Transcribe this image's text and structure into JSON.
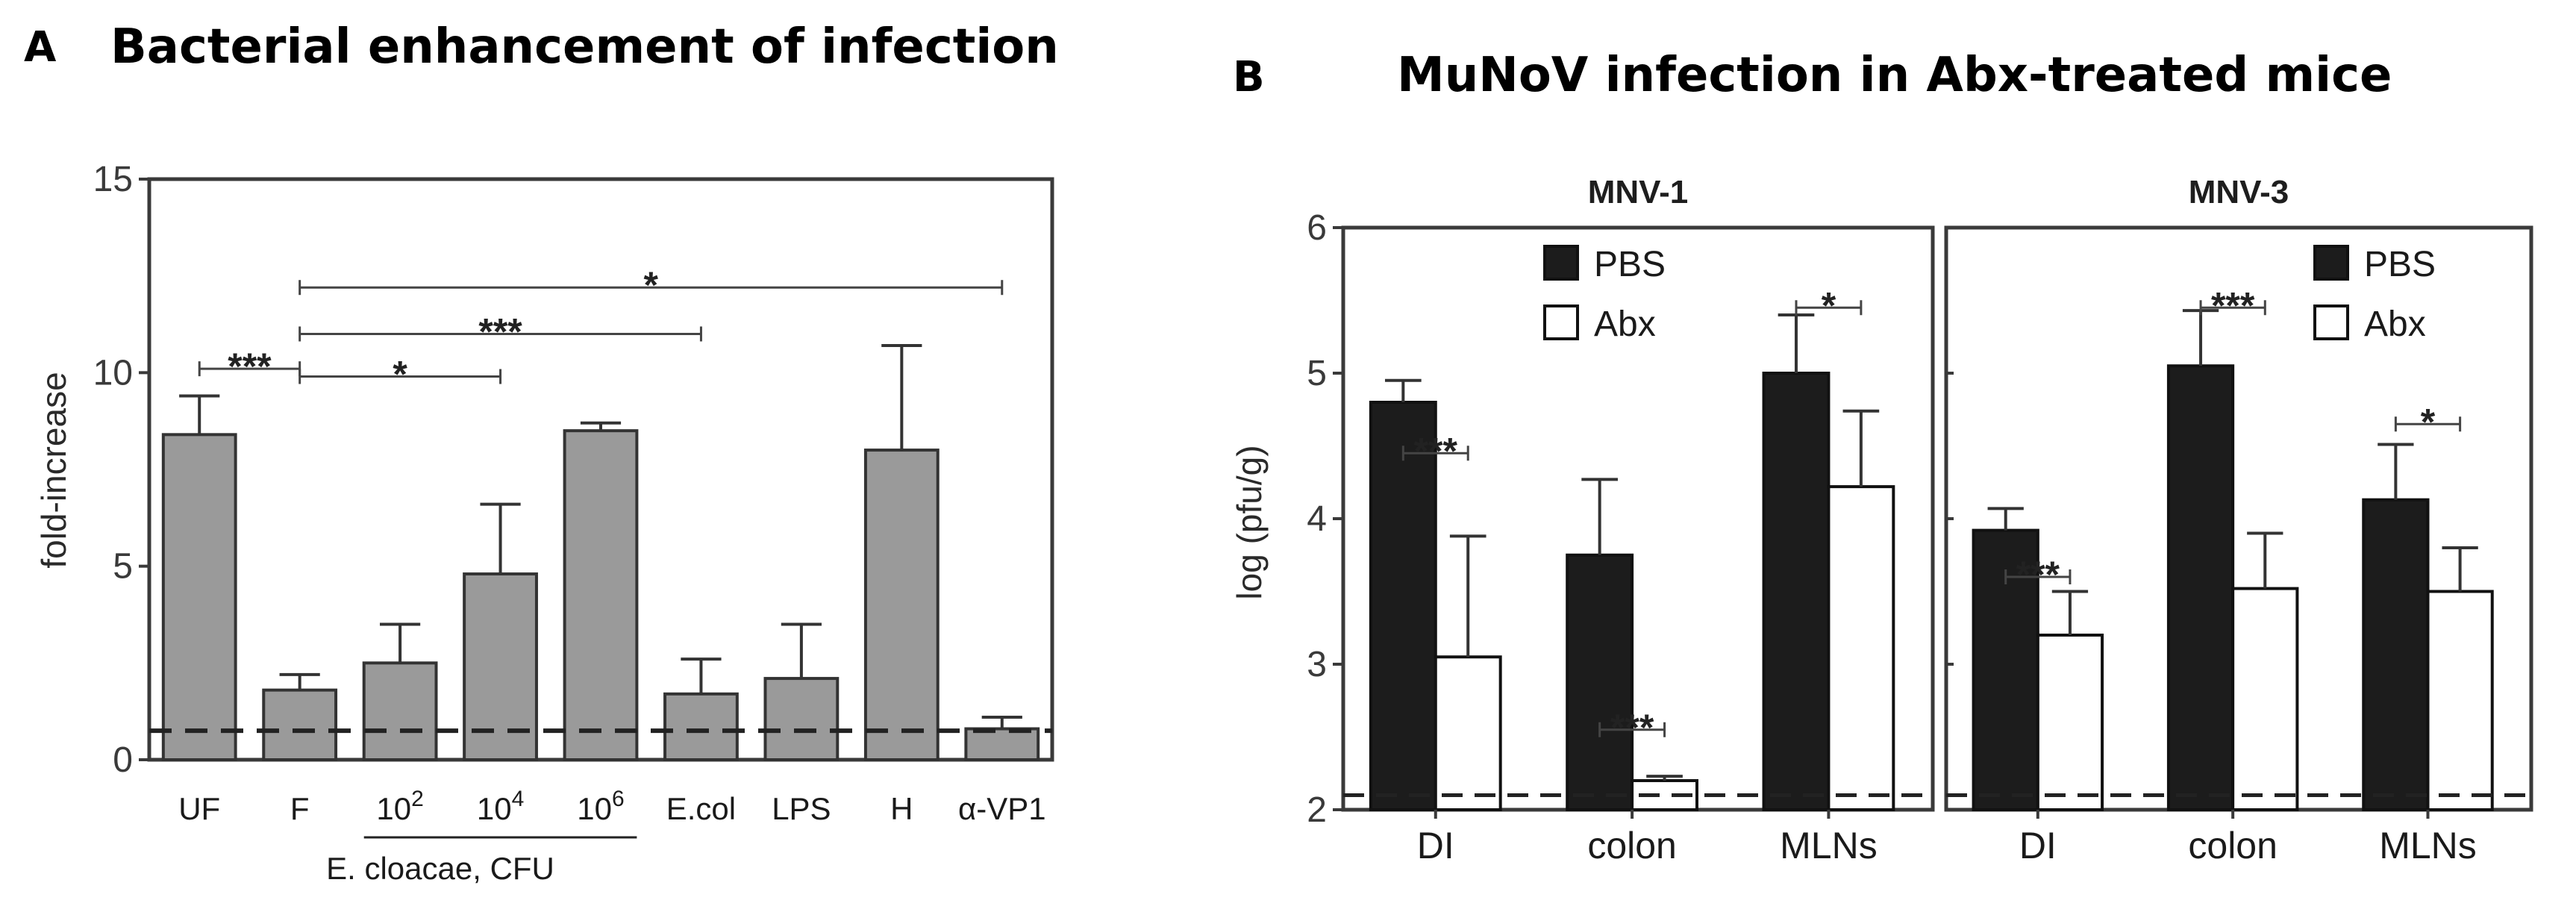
{
  "panelA": {
    "letter": "A",
    "title": "Bacterial enhancement of infection",
    "ylabel": "fold-increase",
    "group_label": "E. cloacae, CFU",
    "yticks": [
      "0",
      "5",
      "10",
      "15"
    ],
    "baseline": 0.75,
    "significance": [
      {
        "label": "***",
        "from": 0,
        "to": 1,
        "y": 10.1
      },
      {
        "label": "*",
        "from": 1,
        "to": 3,
        "y": 9.9
      },
      {
        "label": "***",
        "from": 1,
        "to": 5,
        "y": 11.0
      },
      {
        "label": "*",
        "from": 1,
        "to": 8,
        "y": 12.2
      }
    ]
  },
  "panelB": {
    "letter": "B",
    "title": "MuNoV infection in Abx-treated mice",
    "ylabel": "log (pfu/g)",
    "yticks": [
      "2",
      "3",
      "4",
      "5",
      "6"
    ],
    "legend": {
      "pbs": "PBS",
      "abx": "Abx"
    },
    "baseline": 2.1,
    "subpanels": [
      {
        "title": "MNV-1",
        "categories": [
          "DI",
          "colon",
          "MLNs"
        ],
        "significance": [
          {
            "label": "***",
            "cat": 0,
            "y": 4.45
          },
          {
            "label": "***",
            "cat": 1,
            "y": 2.55
          },
          {
            "label": "*",
            "cat": 2,
            "y": 5.45
          }
        ]
      },
      {
        "title": "MNV-3",
        "categories": [
          "DI",
          "colon",
          "MLNs"
        ],
        "significance": [
          {
            "label": "***",
            "cat": 0,
            "y": 3.6
          },
          {
            "label": "***",
            "cat": 1,
            "y": 5.45
          },
          {
            "label": "*",
            "cat": 2,
            "y": 4.65
          }
        ]
      }
    ]
  },
  "chart_data": [
    {
      "type": "bar",
      "title": "Bacterial enhancement of infection",
      "xlabel": "",
      "ylabel": "fold-increase",
      "ylim": [
        0,
        15
      ],
      "grid": false,
      "categories": [
        {
          "label": "UF"
        },
        {
          "label": "F"
        },
        {
          "base": "10",
          "sup": "2"
        },
        {
          "base": "10",
          "sup": "4"
        },
        {
          "base": "10",
          "sup": "6"
        },
        {
          "label": "E.col"
        },
        {
          "label": "LPS"
        },
        {
          "label": "H"
        },
        {
          "label": "α-VP1"
        }
      ],
      "values": [
        8.4,
        1.8,
        2.5,
        4.8,
        8.5,
        1.7,
        2.1,
        8.0,
        0.8
      ],
      "errors": [
        1.0,
        0.4,
        1.0,
        1.8,
        0.2,
        0.9,
        1.4,
        2.7,
        0.3
      ],
      "reference_line": 0.75
    },
    {
      "type": "bar",
      "title": "MNV-1",
      "ylabel": "log (pfu/g)",
      "ylim": [
        2,
        6
      ],
      "categories": [
        "DI",
        "colon",
        "MLNs"
      ],
      "series": [
        {
          "name": "PBS",
          "values": [
            4.8,
            3.75,
            5.0
          ],
          "errors": [
            0.15,
            0.52,
            0.4
          ]
        },
        {
          "name": "Abx",
          "values": [
            3.05,
            2.2,
            4.22
          ],
          "errors": [
            0.83,
            0.03,
            0.52
          ]
        }
      ],
      "legend": "top-left",
      "reference_line": 2.1
    },
    {
      "type": "bar",
      "title": "MNV-3",
      "ylabel": "log (pfu/g)",
      "ylim": [
        2,
        6
      ],
      "categories": [
        "DI",
        "colon",
        "MLNs"
      ],
      "series": [
        {
          "name": "PBS",
          "values": [
            3.92,
            5.05,
            4.13
          ],
          "errors": [
            0.15,
            0.38,
            0.38
          ]
        },
        {
          "name": "Abx",
          "values": [
            3.2,
            3.52,
            3.5
          ],
          "errors": [
            0.3,
            0.38,
            0.3
          ]
        }
      ],
      "legend": "top-right",
      "reference_line": 2.1
    }
  ]
}
